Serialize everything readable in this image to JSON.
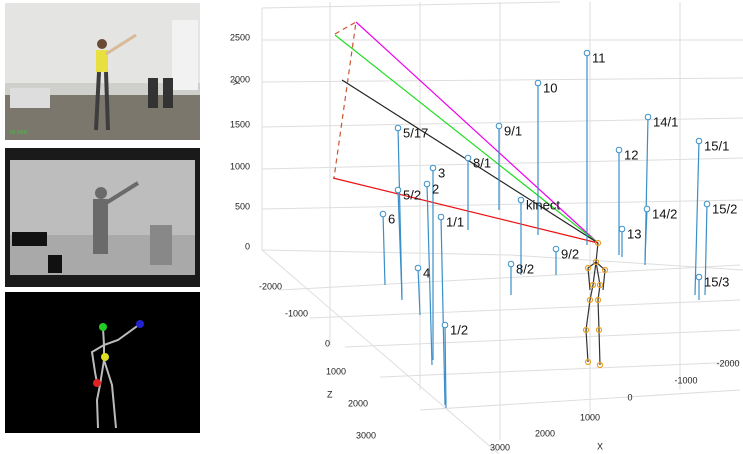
{
  "camera_panel": {
    "label": "no label"
  },
  "plot": {
    "axis_labels": {
      "x": "X",
      "y": "Y",
      "z": "Z"
    },
    "y_ticks": [
      "0",
      "500",
      "1000",
      "1500",
      "2000",
      "2500"
    ],
    "z_ticks": [
      "-2000",
      "-1000",
      "0",
      "1000",
      "2000",
      "3000"
    ],
    "x_ticks": [
      "3000",
      "2000",
      "1000",
      "0",
      "-1000",
      "-2000"
    ],
    "points": [
      "11",
      "10",
      "9/1",
      "8/1",
      "5/17",
      "3",
      "2",
      "5/2",
      "6",
      "1/1",
      "4",
      "1/2",
      "kinect",
      "9/2",
      "8/2",
      "14/1",
      "12",
      "14/2",
      "13",
      "15/1",
      "15/2",
      "15/3"
    ]
  }
}
